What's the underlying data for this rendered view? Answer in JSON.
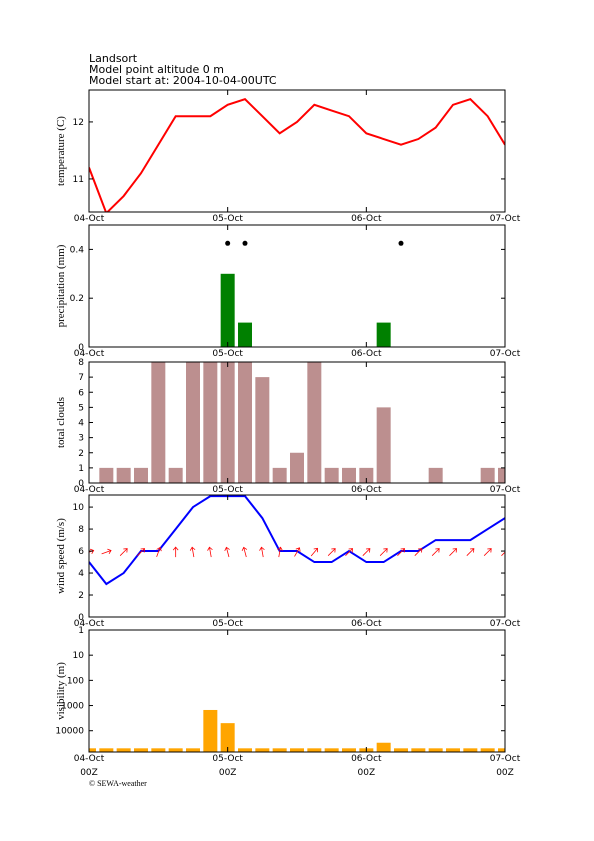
{
  "header": {
    "location": "Landsort",
    "altitude": "Model point altitude  0 m",
    "model_start": "Model start at: 2004-10-04-00UTC"
  },
  "footer": "© SEWA-weather",
  "time": {
    "x": [
      0,
      3,
      6,
      9,
      12,
      15,
      18,
      21,
      24,
      27,
      30,
      33,
      36,
      39,
      42,
      45,
      48,
      51,
      54,
      57,
      60,
      63,
      66,
      69,
      72
    ],
    "xlim": [
      0,
      72
    ],
    "xticks": [
      {
        "value": 0,
        "label": "04-Oct"
      },
      {
        "value": 24,
        "label": "05-Oct"
      },
      {
        "value": 48,
        "label": "06-Oct"
      },
      {
        "value": 72,
        "label": "07-Oct"
      }
    ],
    "xtick_sublabels": [
      "00Z",
      "00Z",
      "00Z",
      "00Z"
    ]
  },
  "chart_data": [
    {
      "type": "line",
      "ylabel": "temperature (C)",
      "ylim": [
        10.42,
        12.56
      ],
      "yticks": [
        11,
        12
      ],
      "series": [
        {
          "color": "#ff0000",
          "values": [
            11.2,
            10.4,
            10.7,
            11.1,
            11.6,
            12.1,
            12.1,
            12.1,
            12.3,
            12.4,
            12.1,
            11.8,
            12.0,
            12.3,
            12.2,
            12.1,
            11.8,
            11.7,
            11.6,
            11.7,
            11.9,
            12.3,
            12.4,
            12.1,
            11.6
          ]
        }
      ]
    },
    {
      "type": "bar",
      "ylabel": "precipitation (mm)",
      "ylim": [
        0,
        0.5
      ],
      "yticks": [
        0,
        0.2,
        0.4
      ],
      "series": [
        {
          "color": "#008000",
          "values": [
            0,
            0,
            0,
            0,
            0,
            0,
            0,
            0,
            0.3,
            0.1,
            0,
            0,
            0,
            0,
            0,
            0,
            0,
            0.1,
            0,
            0,
            0,
            0,
            0,
            0,
            0
          ]
        }
      ],
      "symbol_x": [
        24,
        27,
        54
      ],
      "symbol_y": 0.425
    },
    {
      "type": "bar",
      "ylabel": "total clouds",
      "ylim": [
        0,
        8
      ],
      "yticks": [
        0,
        1,
        2,
        3,
        4,
        5,
        6,
        7,
        8
      ],
      "series": [
        {
          "color": "#bc8f8f",
          "values": [
            0,
            1,
            1,
            1,
            8,
            1,
            8,
            8,
            8,
            8,
            7,
            1,
            2,
            8,
            1,
            1,
            1,
            5,
            0,
            0,
            1,
            0,
            0,
            1,
            1
          ]
        }
      ]
    },
    {
      "type": "line",
      "ylabel": "wind speed (m/s)",
      "ylim": [
        0,
        11.1
      ],
      "yticks": [
        0,
        2,
        4,
        6,
        8,
        10
      ],
      "series": [
        {
          "color": "#0000ff",
          "values": [
            5,
            3,
            4,
            6,
            6,
            8,
            10,
            11,
            11,
            11,
            9,
            6,
            6,
            5,
            5,
            6,
            5,
            5,
            6,
            6,
            7,
            7,
            7,
            8,
            9
          ]
        }
      ],
      "wind_direction": {
        "color": "#ff0000",
        "y": 5.9,
        "values": [
          70,
          70,
          45,
          45,
          20,
          0,
          350,
          350,
          345,
          345,
          350,
          10,
          30,
          40,
          45,
          45,
          45,
          45,
          45,
          45,
          45,
          45,
          45,
          45,
          45
        ]
      }
    },
    {
      "type": "bar",
      "ylabel": "visibility (m)",
      "log_y": true,
      "y_reversed": true,
      "ylim": [
        1,
        70000
      ],
      "yticks": [
        1,
        10,
        100,
        1000,
        10000
      ],
      "series": [
        {
          "color": "#ffa500",
          "values": [
            50000,
            50000,
            50000,
            50000,
            50000,
            50000,
            50000,
            1500,
            5000,
            50000,
            50000,
            50000,
            50000,
            50000,
            50000,
            50000,
            50000,
            30000,
            50000,
            50000,
            50000,
            50000,
            50000,
            50000,
            50000
          ]
        }
      ]
    }
  ]
}
